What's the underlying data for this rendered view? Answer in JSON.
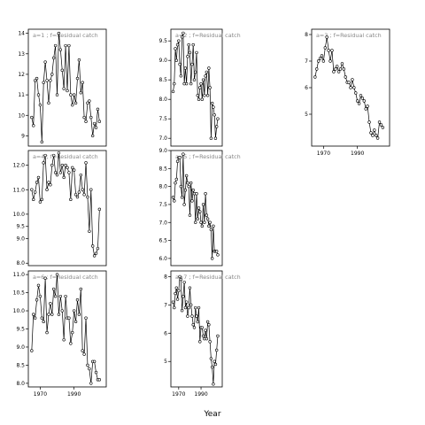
{
  "chart_data": {
    "type": "line",
    "xlabel": "Year",
    "ylabel": "",
    "grid": false,
    "legend": "none",
    "colors": {
      "line": "#000000",
      "marker_fill": "#ffffff",
      "panel_label": "#888888"
    },
    "panels": [
      {
        "id": "r1c1",
        "label": "a=1 ; f=Residual catch",
        "xlim": [
          1963,
          2009
        ],
        "ylim": [
          8.5,
          14.2
        ],
        "yticks": [
          9,
          10,
          11,
          12,
          13,
          14
        ],
        "xticks": [],
        "series": {
          "x": [
            1965,
            1966,
            1967,
            1968,
            1969,
            1970,
            1971,
            1972,
            1973,
            1974,
            1975,
            1976,
            1977,
            1978,
            1979,
            1980,
            1981,
            1982,
            1983,
            1984,
            1985,
            1986,
            1987,
            1988,
            1989,
            1990,
            1991,
            1992,
            1993,
            1994,
            1995,
            1996,
            1997,
            1998,
            1999,
            2000,
            2001,
            2002,
            2003,
            2004,
            2005
          ],
          "values": [
            9.9,
            9.5,
            11.7,
            11.8,
            11.0,
            10.5,
            8.7,
            11.6,
            12.6,
            11.7,
            10.6,
            11.7,
            12.0,
            12.8,
            13.4,
            11.0,
            14.0,
            13.2,
            12.2,
            11.3,
            13.4,
            11.2,
            13.4,
            11.0,
            10.5,
            11.0,
            10.6,
            11.8,
            12.7,
            11.1,
            11.6,
            9.9,
            9.7,
            10.6,
            10.7,
            9.9,
            9.0,
            9.6,
            9.4,
            10.3,
            9.7
          ]
        }
      },
      {
        "id": "r1c2",
        "label": "a=2 ; f=Residual catch",
        "xlim": [
          1963,
          2009
        ],
        "ylim": [
          6.8,
          9.8
        ],
        "yticks": [
          7.0,
          7.5,
          8.0,
          8.5,
          9.0,
          9.5
        ],
        "xticks": [],
        "series": {
          "x": [
            1965,
            1966,
            1967,
            1968,
            1969,
            1970,
            1971,
            1972,
            1973,
            1974,
            1975,
            1976,
            1977,
            1978,
            1979,
            1980,
            1981,
            1982,
            1983,
            1984,
            1985,
            1986,
            1987,
            1988,
            1989,
            1990,
            1991,
            1992,
            1993,
            1994,
            1995,
            1996,
            1997,
            1998,
            1999,
            2000,
            2001,
            2002,
            2003,
            2004,
            2005
          ],
          "values": [
            8.2,
            8.4,
            9.3,
            9.0,
            9.4,
            9.5,
            8.9,
            8.6,
            9.6,
            9.7,
            8.4,
            8.8,
            8.4,
            9.1,
            9.4,
            9.2,
            8.4,
            8.9,
            9.4,
            8.5,
            8.7,
            9.2,
            8.1,
            8.0,
            8.3,
            8.4,
            8.0,
            8.5,
            8.1,
            8.6,
            8.7,
            8.1,
            8.8,
            8.3,
            7.0,
            7.9,
            7.8,
            7.6,
            7.0,
            7.3,
            7.5
          ]
        }
      },
      {
        "id": "r1c3",
        "label": "a=3 ; f=Residual catch",
        "xlim": [
          1963,
          2009
        ],
        "ylim": [
          3.8,
          8.2
        ],
        "yticks": [
          5,
          6,
          7,
          8
        ],
        "xticks": [
          1970,
          1990
        ],
        "series": {
          "x": [
            1965,
            1966,
            1967,
            1968,
            1969,
            1970,
            1971,
            1972,
            1973,
            1974,
            1975,
            1976,
            1977,
            1978,
            1979,
            1980,
            1981,
            1982,
            1983,
            1984,
            1985,
            1986,
            1987,
            1988,
            1989,
            1990,
            1991,
            1992,
            1993,
            1994,
            1995,
            1996,
            1997,
            1998,
            1999,
            2000,
            2001,
            2002,
            2003,
            2004,
            2005
          ],
          "values": [
            6.4,
            6.7,
            7.0,
            7.1,
            7.2,
            7.0,
            7.5,
            7.9,
            7.4,
            7.0,
            7.4,
            6.6,
            6.7,
            6.8,
            6.6,
            6.7,
            6.9,
            6.7,
            6.4,
            6.2,
            6.2,
            6.0,
            6.3,
            6.0,
            5.8,
            5.5,
            5.4,
            5.7,
            5.6,
            5.5,
            5.2,
            5.3,
            4.7,
            4.3,
            4.2,
            4.4,
            4.2,
            4.1,
            4.7,
            4.6,
            4.5
          ]
        }
      },
      {
        "id": "r2c1",
        "label": "a=4 ; f=Residual catch",
        "xlim": [
          1963,
          2009
        ],
        "ylim": [
          7.9,
          12.6
        ],
        "yticks": [
          8.0,
          9.0,
          9.5,
          10.0,
          11.0,
          12.0
        ],
        "ytick_labels": [
          "8.0",
          "9.0",
          "9.5",
          "10.0",
          "11.0",
          "12.0"
        ],
        "xticks": [],
        "series": {
          "x": [
            1965,
            1966,
            1967,
            1968,
            1969,
            1970,
            1971,
            1972,
            1973,
            1974,
            1975,
            1976,
            1977,
            1978,
            1979,
            1980,
            1981,
            1982,
            1983,
            1984,
            1985,
            1986,
            1987,
            1988,
            1989,
            1990,
            1991,
            1992,
            1993,
            1994,
            1995,
            1996,
            1997,
            1998,
            1999,
            2000,
            2001,
            2002,
            2003,
            2004,
            2005
          ],
          "values": [
            11.0,
            10.6,
            10.9,
            11.3,
            11.5,
            10.5,
            10.6,
            12.1,
            12.4,
            11.0,
            11.3,
            11.2,
            12.0,
            12.4,
            11.7,
            11.6,
            12.5,
            11.7,
            12.0,
            11.5,
            12.0,
            11.9,
            11.7,
            10.6,
            11.9,
            11.8,
            10.8,
            10.7,
            10.9,
            11.6,
            11.0,
            10.8,
            12.1,
            10.7,
            9.3,
            11.0,
            8.7,
            8.3,
            8.4,
            8.6,
            10.2
          ]
        }
      },
      {
        "id": "r2c2",
        "label": "a=5 ; f=Residual catch",
        "xlim": [
          1963,
          2009
        ],
        "ylim": [
          5.8,
          9.0
        ],
        "yticks": [
          6.0,
          6.5,
          7.0,
          7.5,
          8.0,
          8.5,
          9.0
        ],
        "xticks": [],
        "series": {
          "x": [
            1965,
            1966,
            1967,
            1968,
            1969,
            1970,
            1971,
            1972,
            1973,
            1974,
            1975,
            1976,
            1977,
            1978,
            1979,
            1980,
            1981,
            1982,
            1983,
            1984,
            1985,
            1986,
            1987,
            1988,
            1989,
            1990,
            1991,
            1992,
            1993,
            1994,
            1995,
            1996,
            1997,
            1998,
            1999,
            2000,
            2001,
            2002,
            2003,
            2004,
            2005
          ],
          "values": [
            7.7,
            7.6,
            8.1,
            8.2,
            8.7,
            8.8,
            8.8,
            8.0,
            7.7,
            8.9,
            7.5,
            7.9,
            8.3,
            8.1,
            8.0,
            7.2,
            8.1,
            7.6,
            7.9,
            7.8,
            7.0,
            7.8,
            7.1,
            7.4,
            7.3,
            7.0,
            6.9,
            7.5,
            7.0,
            7.8,
            7.2,
            7.1,
            6.9,
            7.0,
            6.8,
            6.0,
            6.9,
            6.2,
            6.2,
            6.2,
            6.1
          ]
        }
      },
      {
        "id": "r3c1",
        "label": "a=6 ; f=Residual catch",
        "xlim": [
          1963,
          2009
        ],
        "ylim": [
          7.9,
          11.1
        ],
        "yticks": [
          8.0,
          8.5,
          9.0,
          9.5,
          10.0,
          10.5,
          11.0
        ],
        "xticks": [
          1970,
          1990
        ],
        "series": {
          "x": [
            1965,
            1966,
            1967,
            1968,
            1969,
            1970,
            1971,
            1972,
            1973,
            1974,
            1975,
            1976,
            1977,
            1978,
            1979,
            1980,
            1981,
            1982,
            1983,
            1984,
            1985,
            1986,
            1987,
            1988,
            1989,
            1990,
            1991,
            1992,
            1993,
            1994,
            1995,
            1996,
            1997,
            1998,
            1999,
            2000,
            2001,
            2002,
            2003,
            2004,
            2005
          ],
          "values": [
            8.9,
            9.9,
            9.8,
            10.3,
            10.7,
            10.4,
            9.8,
            9.7,
            10.9,
            9.4,
            9.9,
            10.2,
            9.9,
            10.6,
            10.4,
            11.0,
            9.9,
            10.4,
            10.0,
            9.2,
            10.4,
            9.8,
            9.8,
            9.1,
            9.4,
            10.0,
            9.7,
            10.3,
            9.9,
            10.6,
            8.9,
            8.8,
            9.8,
            8.5,
            8.4,
            8.0,
            8.6,
            8.6,
            8.3,
            8.1,
            8.1
          ]
        }
      },
      {
        "id": "r3c2",
        "label": "a=7 ; f=Residual catch",
        "xlim": [
          1963,
          2009
        ],
        "ylim": [
          4.1,
          8.2
        ],
        "yticks": [
          5,
          6,
          7,
          8
        ],
        "xticks": [
          1970,
          1990
        ],
        "series": {
          "x": [
            1965,
            1966,
            1967,
            1968,
            1969,
            1970,
            1971,
            1972,
            1973,
            1974,
            1975,
            1976,
            1977,
            1978,
            1979,
            1980,
            1981,
            1982,
            1983,
            1984,
            1985,
            1986,
            1987,
            1988,
            1989,
            1990,
            1991,
            1992,
            1993,
            1994,
            1995,
            1996,
            1997,
            1998,
            1999,
            2000,
            2001,
            2002,
            2003,
            2004,
            2005
          ],
          "values": [
            7.1,
            6.9,
            7.4,
            7.6,
            7.2,
            7.5,
            8.0,
            7.9,
            6.8,
            7.3,
            7.8,
            6.9,
            7.1,
            6.6,
            6.9,
            7.6,
            7.0,
            6.6,
            6.3,
            6.2,
            6.9,
            6.6,
            6.4,
            6.9,
            5.7,
            6.2,
            6.2,
            5.9,
            5.8,
            6.1,
            5.8,
            6.4,
            6.3,
            5.7,
            5.1,
            4.8,
            4.2,
            5.0,
            4.9,
            5.4,
            5.9
          ]
        }
      }
    ]
  }
}
